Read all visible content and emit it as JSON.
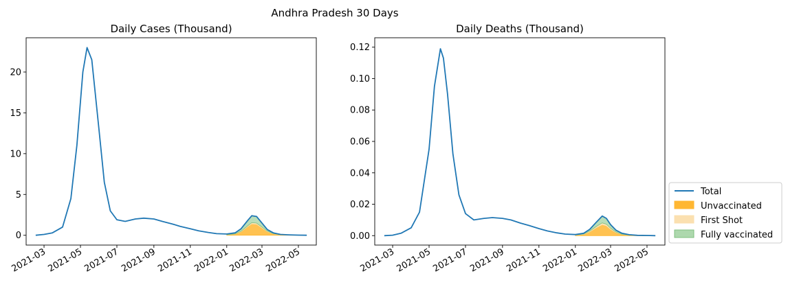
{
  "figure": {
    "suptitle": "Andhra Pradesh 30 Days"
  },
  "colors": {
    "total": "#1f77b4",
    "unvaccinated": "#ffb732",
    "first_shot": "#fbe0b0",
    "fully_vaccinated": "#add8ad",
    "fully_vaccinated_edge": "#7fbf7f"
  },
  "legend": {
    "placement": "right-bottom",
    "entries": [
      "Total",
      "Unvaccinated",
      "First Shot",
      "Fully vaccinated"
    ]
  },
  "chart_data": [
    {
      "type": "area",
      "title": "Daily Cases (Thousand)",
      "xlabel": "",
      "ylabel": "",
      "x_type": "date",
      "xlim": [
        "2021-01-30",
        "2022-05-31"
      ],
      "ylim": [
        -1.2,
        24.2
      ],
      "xticks": [
        "2021-03",
        "2021-05",
        "2021-07",
        "2021-09",
        "2021-11",
        "2022-01",
        "2022-03",
        "2022-05"
      ],
      "yticks": [
        0,
        5,
        10,
        15,
        20
      ],
      "grid": false,
      "x": [
        "2021-02-15",
        "2021-03-01",
        "2021-03-15",
        "2021-04-01",
        "2021-04-15",
        "2021-04-25",
        "2021-05-05",
        "2021-05-12",
        "2021-05-20",
        "2021-06-01",
        "2021-06-10",
        "2021-06-20",
        "2021-07-01",
        "2021-07-15",
        "2021-08-01",
        "2021-08-15",
        "2021-09-01",
        "2021-09-15",
        "2021-10-01",
        "2021-10-15",
        "2021-11-01",
        "2021-11-15",
        "2021-12-01",
        "2021-12-15",
        "2022-01-01",
        "2022-01-15",
        "2022-01-25",
        "2022-02-05",
        "2022-02-12",
        "2022-02-20",
        "2022-03-01",
        "2022-03-10",
        "2022-03-20",
        "2022-04-01",
        "2022-04-15",
        "2022-05-01",
        "2022-05-15"
      ],
      "series": [
        {
          "name": "Total",
          "kind": "line",
          "values": [
            0.0,
            0.1,
            0.3,
            1.0,
            4.5,
            11.0,
            20.0,
            23.0,
            21.5,
            13.0,
            6.5,
            3.0,
            1.9,
            1.7,
            2.0,
            2.1,
            2.0,
            1.7,
            1.4,
            1.1,
            0.8,
            0.55,
            0.35,
            0.2,
            0.15,
            0.3,
            0.8,
            1.8,
            2.4,
            2.3,
            1.5,
            0.7,
            0.3,
            0.1,
            0.05,
            0.02,
            0.0
          ]
        },
        {
          "name": "Unvaccinated",
          "kind": "area",
          "values": [
            null,
            null,
            null,
            null,
            null,
            null,
            null,
            null,
            null,
            null,
            null,
            null,
            null,
            null,
            null,
            null,
            null,
            null,
            null,
            null,
            null,
            null,
            null,
            null,
            0.06,
            0.15,
            0.45,
            1.05,
            1.4,
            1.35,
            0.9,
            0.45,
            0.18,
            0.06,
            0.03,
            0.01,
            0.0
          ]
        },
        {
          "name": "First Shot",
          "kind": "area",
          "values": [
            null,
            null,
            null,
            null,
            null,
            null,
            null,
            null,
            null,
            null,
            null,
            null,
            null,
            null,
            null,
            null,
            null,
            null,
            null,
            null,
            null,
            null,
            null,
            null,
            0.01,
            0.02,
            0.05,
            0.1,
            0.15,
            0.14,
            0.1,
            0.05,
            0.02,
            0.01,
            0.0,
            0.0,
            0.0
          ]
        },
        {
          "name": "Fully vaccinated",
          "kind": "area",
          "values": [
            null,
            null,
            null,
            null,
            null,
            null,
            null,
            null,
            null,
            null,
            null,
            null,
            null,
            null,
            null,
            null,
            null,
            null,
            null,
            null,
            null,
            null,
            null,
            null,
            0.08,
            0.13,
            0.3,
            0.65,
            0.85,
            0.81,
            0.5,
            0.2,
            0.1,
            0.03,
            0.02,
            0.01,
            0.0
          ]
        }
      ]
    },
    {
      "type": "area",
      "title": "Daily Deaths (Thousand)",
      "xlabel": "",
      "ylabel": "",
      "x_type": "date",
      "xlim": [
        "2021-01-30",
        "2022-05-31"
      ],
      "ylim": [
        -0.006,
        0.126
      ],
      "xticks": [
        "2021-03",
        "2021-05",
        "2021-07",
        "2021-09",
        "2021-11",
        "2022-01",
        "2022-03",
        "2022-05"
      ],
      "yticks": [
        "0.00",
        "0.02",
        "0.04",
        "0.06",
        "0.08",
        "0.10",
        "0.12"
      ],
      "grid": false,
      "x": [
        "2021-02-15",
        "2021-03-01",
        "2021-03-15",
        "2021-04-01",
        "2021-04-15",
        "2021-05-01",
        "2021-05-10",
        "2021-05-20",
        "2021-05-25",
        "2021-06-01",
        "2021-06-10",
        "2021-06-20",
        "2021-07-01",
        "2021-07-15",
        "2021-08-01",
        "2021-08-15",
        "2021-09-01",
        "2021-09-15",
        "2021-10-01",
        "2021-10-15",
        "2021-11-01",
        "2021-11-15",
        "2021-12-01",
        "2021-12-15",
        "2022-01-01",
        "2022-01-15",
        "2022-01-25",
        "2022-02-05",
        "2022-02-15",
        "2022-02-22",
        "2022-03-01",
        "2022-03-10",
        "2022-03-20",
        "2022-04-01",
        "2022-04-15",
        "2022-05-01",
        "2022-05-15"
      ],
      "series": [
        {
          "name": "Total",
          "kind": "line",
          "values": [
            0.0,
            0.0003,
            0.0015,
            0.005,
            0.015,
            0.055,
            0.095,
            0.119,
            0.113,
            0.09,
            0.052,
            0.026,
            0.014,
            0.01,
            0.011,
            0.0115,
            0.011,
            0.01,
            0.008,
            0.0065,
            0.0045,
            0.003,
            0.0018,
            0.001,
            0.0007,
            0.0015,
            0.004,
            0.0085,
            0.0125,
            0.011,
            0.007,
            0.0035,
            0.0015,
            0.0006,
            0.0002,
            0.0001,
            0.0
          ]
        },
        {
          "name": "Unvaccinated",
          "kind": "area",
          "values": [
            null,
            null,
            null,
            null,
            null,
            null,
            null,
            null,
            null,
            null,
            null,
            null,
            null,
            null,
            null,
            null,
            null,
            null,
            null,
            null,
            null,
            null,
            null,
            null,
            0.0003,
            0.0008,
            0.0025,
            0.005,
            0.007,
            0.0063,
            0.004,
            0.002,
            0.0008,
            0.0003,
            0.0001,
            0.0,
            0.0
          ]
        },
        {
          "name": "First Shot",
          "kind": "area",
          "values": [
            null,
            null,
            null,
            null,
            null,
            null,
            null,
            null,
            null,
            null,
            null,
            null,
            null,
            null,
            null,
            null,
            null,
            null,
            null,
            null,
            null,
            null,
            null,
            null,
            0.0001,
            0.0002,
            0.0004,
            0.0008,
            0.0011,
            0.001,
            0.0007,
            0.0003,
            0.0001,
            0.0001,
            0.0,
            0.0,
            0.0
          ]
        },
        {
          "name": "Fully vaccinated",
          "kind": "area",
          "values": [
            null,
            null,
            null,
            null,
            null,
            null,
            null,
            null,
            null,
            null,
            null,
            null,
            null,
            null,
            null,
            null,
            null,
            null,
            null,
            null,
            null,
            null,
            null,
            null,
            0.0003,
            0.0005,
            0.0011,
            0.0027,
            0.0044,
            0.0037,
            0.0023,
            0.0012,
            0.0006,
            0.0002,
            0.0001,
            0.0001,
            0.0
          ]
        }
      ]
    }
  ]
}
